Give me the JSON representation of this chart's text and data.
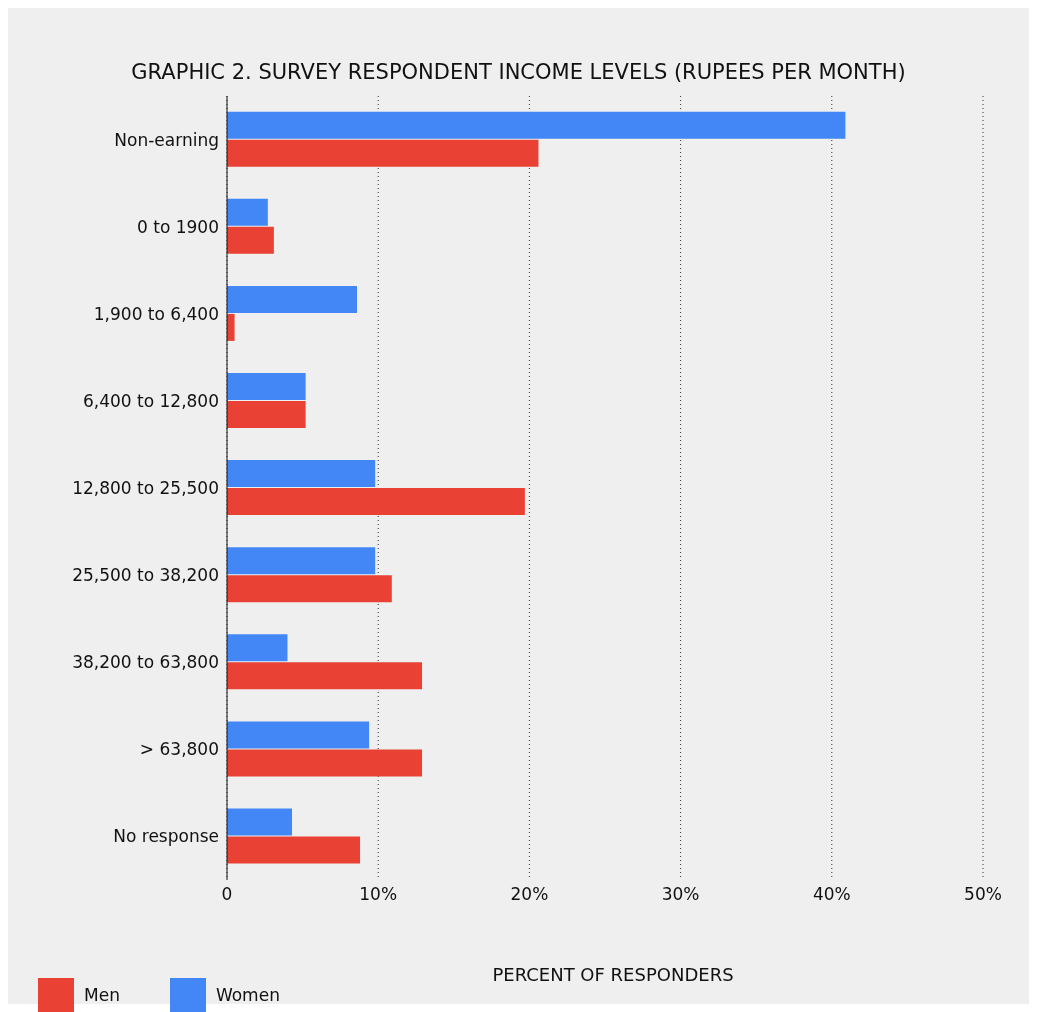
{
  "chart_data": {
    "type": "bar",
    "orientation": "horizontal",
    "title": "GRAPHIC 2. SURVEY RESPONDENT INCOME LEVELS (RUPEES PER MONTH)",
    "xlabel": "PERCENT OF RESPONDERS",
    "categories": [
      "Non-earning",
      "0 to 1900",
      "1,900 to 6,400",
      "6,400 to 12,800",
      "12,800 to 25,500",
      "25,500 to 38,200",
      "38,200 to 63,800",
      "> 63,800",
      "No response"
    ],
    "series": [
      {
        "name": "Women",
        "color": "#4287f5",
        "values": [
          40.9,
          2.7,
          8.6,
          5.2,
          9.8,
          9.8,
          4.0,
          9.4,
          4.3
        ]
      },
      {
        "name": "Men",
        "color": "#e94235",
        "values": [
          20.6,
          3.1,
          0.5,
          5.2,
          19.7,
          10.9,
          12.9,
          12.9,
          8.8
        ]
      }
    ],
    "xlim": [
      0,
      50
    ],
    "xticks": [
      {
        "value": 0,
        "label": "0"
      },
      {
        "value": 10,
        "label": "10%"
      },
      {
        "value": 20,
        "label": "20%"
      },
      {
        "value": 30,
        "label": "30%"
      },
      {
        "value": 40,
        "label": "40%"
      },
      {
        "value": 50,
        "label": "50%"
      }
    ],
    "grid": "x",
    "legend": "bottom left"
  }
}
